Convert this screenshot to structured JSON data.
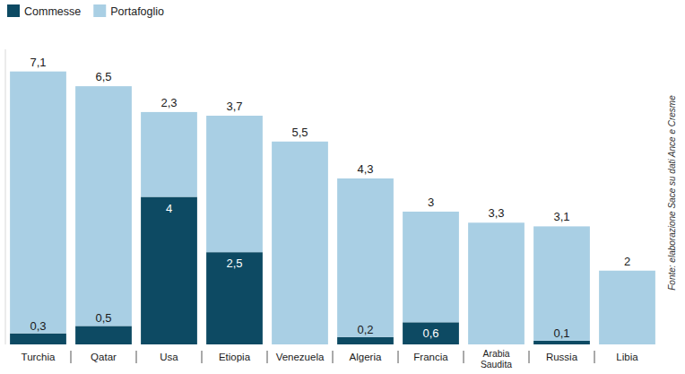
{
  "chart_data": {
    "type": "bar",
    "stacked": true,
    "data_labels": true,
    "tick_labels": "x",
    "legend": "top-left",
    "source": "Fonte: elaborazione Sace su dati Ance e Cresme",
    "categories": [
      "Turchia",
      "Qatar",
      "Usa",
      "Etiopia",
      "Venezuela",
      "Algeria",
      "Francia",
      "Arabia Saudita",
      "Russia",
      "Libia"
    ],
    "ylim": [
      0,
      8
    ],
    "series": [
      {
        "name": "Commesse",
        "color": "#0d4a63",
        "values": [
          0.3,
          0.5,
          4,
          2.5,
          null,
          0.2,
          0.6,
          null,
          0.1,
          null
        ],
        "value_labels": [
          "0,3",
          "0,5",
          "4",
          "2,5",
          null,
          "0,2",
          "0,6",
          null,
          "0,1",
          null
        ]
      },
      {
        "name": "Portafoglio",
        "color": "#a9cfe4",
        "values": [
          7.1,
          6.5,
          2.3,
          3.7,
          5.5,
          4.3,
          3,
          3.3,
          3.1,
          2
        ],
        "value_labels": [
          "7,1",
          "6,5",
          "2,3",
          "3,7",
          "5,5",
          "4,3",
          "3",
          "3,3",
          "3,1",
          "2"
        ]
      }
    ]
  }
}
